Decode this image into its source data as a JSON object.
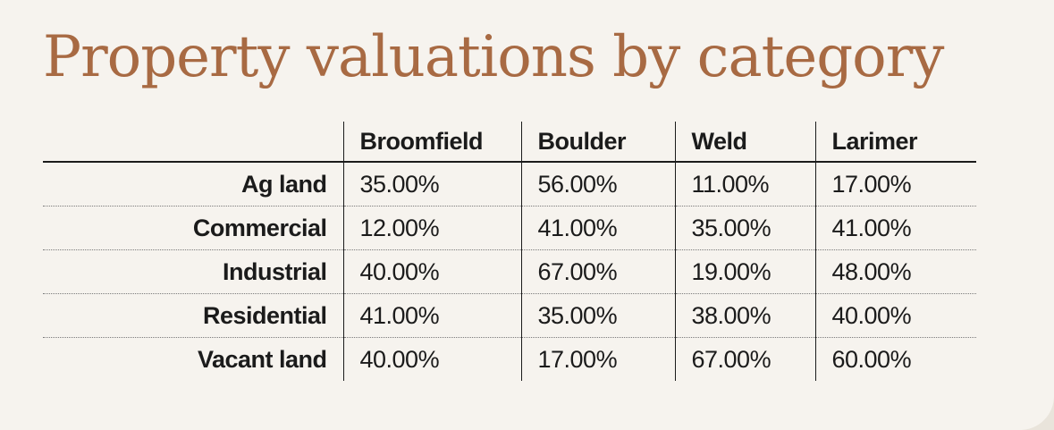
{
  "chart_data": {
    "type": "table",
    "title": "Property valuations by category",
    "columns": [
      "Broomfield",
      "Boulder",
      "Weld",
      "Larimer"
    ],
    "rows": [
      {
        "label": "Ag land",
        "values": [
          "35.00%",
          "56.00%",
          "11.00%",
          "17.00%"
        ]
      },
      {
        "label": "Commercial",
        "values": [
          "12.00%",
          "41.00%",
          "35.00%",
          "41.00%"
        ]
      },
      {
        "label": "Industrial",
        "values": [
          "40.00%",
          "67.00%",
          "19.00%",
          "48.00%"
        ]
      },
      {
        "label": "Residential",
        "values": [
          "41.00%",
          "35.00%",
          "38.00%",
          "40.00%"
        ]
      },
      {
        "label": "Vacant land",
        "values": [
          "40.00%",
          "17.00%",
          "67.00%",
          "60.00%"
        ]
      }
    ]
  },
  "colors": {
    "title": "#a86a43",
    "background": "#f6f3ee",
    "text": "#1b1b1b"
  }
}
